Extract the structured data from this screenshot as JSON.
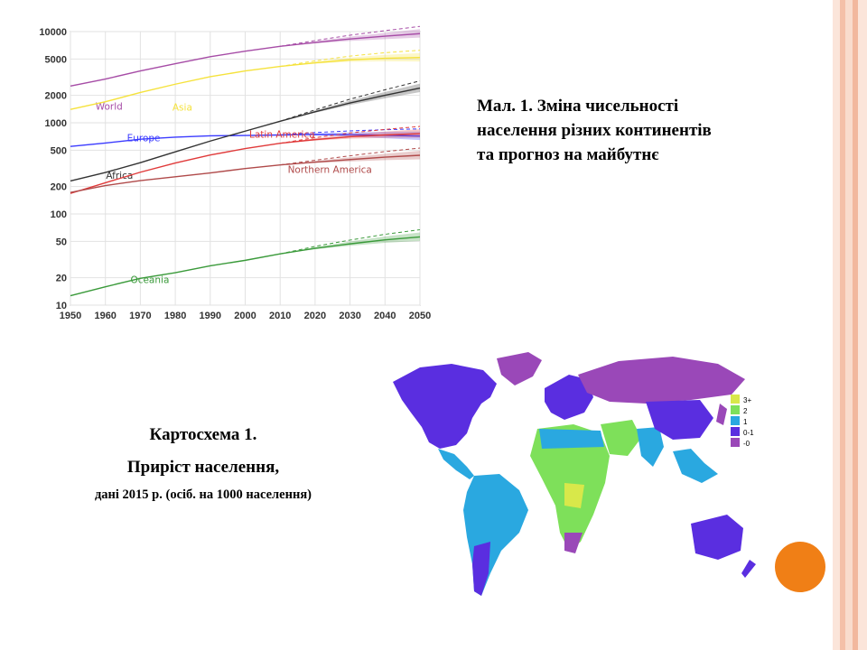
{
  "chart_data": {
    "type": "line",
    "yscale": "log",
    "ylim": [
      10,
      10000
    ],
    "xlim": [
      1950,
      2050
    ],
    "x_ticks": [
      "1950",
      "1960",
      "1970",
      "1980",
      "1990",
      "2000",
      "2010",
      "2020",
      "2030",
      "2040",
      "2050"
    ],
    "y_ticks": [
      "10000",
      "5000",
      "2000",
      "1000",
      "500",
      "200",
      "100",
      "50",
      "20",
      "10"
    ],
    "grid": true,
    "x": [
      1950,
      1960,
      1970,
      1980,
      1990,
      2000,
      2010,
      2020,
      2030,
      2040,
      2050
    ],
    "series": [
      {
        "name": "World",
        "color": "#a64ca6",
        "values": [
          2525,
          3020,
          3700,
          4450,
          5300,
          6100,
          6900,
          7600,
          8300,
          8900,
          9500
        ]
      },
      {
        "name": "Asia",
        "color": "#f5e23c",
        "values": [
          1400,
          1700,
          2150,
          2650,
          3200,
          3700,
          4150,
          4550,
          4900,
          5100,
          5200
        ]
      },
      {
        "name": "Europe",
        "color": "#3b3bff",
        "values": [
          550,
          600,
          660,
          695,
          720,
          725,
          735,
          745,
          740,
          730,
          715
        ]
      },
      {
        "name": "Africa",
        "color": "#333333",
        "values": [
          230,
          285,
          365,
          480,
          630,
          810,
          1040,
          1320,
          1650,
          2000,
          2400
        ]
      },
      {
        "name": "Latin America",
        "color": "#e03a3a",
        "values": [
          168,
          220,
          287,
          362,
          443,
          521,
          596,
          654,
          703,
          735,
          760
        ]
      },
      {
        "name": "Northern America",
        "color": "#b04a4a",
        "values": [
          172,
          205,
          232,
          256,
          282,
          315,
          345,
          370,
          395,
          420,
          440
        ]
      },
      {
        "name": "Oceania",
        "color": "#3a9a3a",
        "values": [
          12.7,
          15.9,
          19.7,
          22.7,
          27,
          31,
          36.5,
          42,
          47,
          52,
          56
        ]
      }
    ]
  },
  "caption_right": {
    "line1": "Мал. 1. Зміна чисельності",
    "line2": "населення різних континентів",
    "line3": "та прогноз на майбутнє"
  },
  "caption_left": {
    "line1": "Картосхема 1.",
    "line2": "Приріст населення,",
    "line3": "дані 2015 р. (осіб. на 1000 населення)"
  },
  "map": {
    "legend": [
      {
        "label": "3+",
        "color": "#d8e84a"
      },
      {
        "label": "2",
        "color": "#7ee05a"
      },
      {
        "label": "1",
        "color": "#2aa8e0"
      },
      {
        "label": "0-1",
        "color": "#5a2ee0"
      },
      {
        "label": "-0",
        "color": "#9a48b8"
      }
    ]
  },
  "colors": {
    "stripe_light": "#f8d8c8",
    "stripe_mid": "#f2b89e",
    "accent_dot": "#f07f16"
  }
}
